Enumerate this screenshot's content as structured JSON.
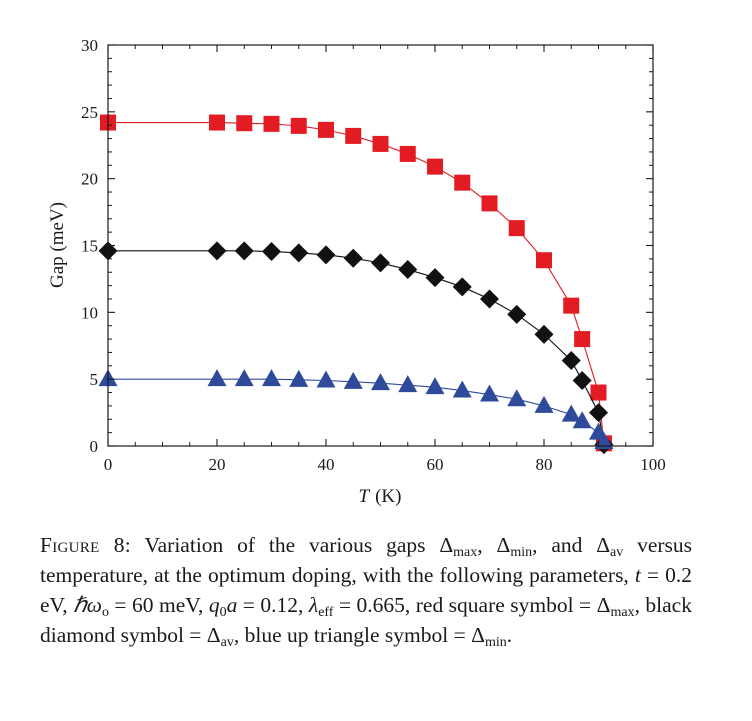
{
  "chart_data": {
    "type": "scatter",
    "xlabel_var": "T",
    "xlabel_unit": "(K)",
    "ylabel": "Gap (meV)",
    "xlim": [
      0,
      100
    ],
    "ylim": [
      0,
      30
    ],
    "xticks": [
      "0",
      "20",
      "40",
      "60",
      "80",
      "100"
    ],
    "yticks": [
      "0",
      "5",
      "10",
      "15",
      "20",
      "25",
      "30"
    ],
    "grid": false,
    "series": [
      {
        "marker": "square",
        "color": "#e31b23",
        "x": [
          0,
          20,
          25,
          30,
          35,
          40,
          45,
          50,
          55,
          60,
          65,
          70,
          75,
          80,
          85,
          87,
          90,
          91
        ],
        "y": [
          24.2,
          24.2,
          24.15,
          24.1,
          23.95,
          23.65,
          23.2,
          22.6,
          21.85,
          20.9,
          19.7,
          18.15,
          16.3,
          13.9,
          10.5,
          8.0,
          4.0,
          0.2
        ]
      },
      {
        "marker": "diamond",
        "color": "#111111",
        "x": [
          0,
          20,
          25,
          30,
          35,
          40,
          45,
          50,
          55,
          60,
          65,
          70,
          75,
          80,
          85,
          87,
          90,
          91
        ],
        "y": [
          14.6,
          14.6,
          14.6,
          14.55,
          14.45,
          14.3,
          14.05,
          13.7,
          13.2,
          12.6,
          11.9,
          11.0,
          9.85,
          8.35,
          6.4,
          4.9,
          2.5,
          0.1
        ]
      },
      {
        "marker": "triangle-up",
        "color": "#2e4a9a",
        "x": [
          0,
          20,
          25,
          30,
          35,
          40,
          45,
          50,
          55,
          60,
          65,
          70,
          75,
          80,
          85,
          87,
          90,
          91
        ],
        "y": [
          5.0,
          5.0,
          5.0,
          5.0,
          4.95,
          4.9,
          4.8,
          4.7,
          4.55,
          4.4,
          4.15,
          3.85,
          3.5,
          3.0,
          2.35,
          1.85,
          1.0,
          0.3
        ]
      }
    ]
  },
  "caption": {
    "figure_label": "Figure 8:",
    "parts": [
      " Variation of the various gaps Δ",
      "max",
      ", Δ",
      "min",
      ", and Δ",
      "av",
      " versus temperature, at the optimum doping, with the following parameters, ",
      "t",
      " = 0.2 eV, ",
      "ℏω",
      "o",
      " = 60 meV, ",
      "q",
      "0",
      "a",
      " = 0.12, ",
      "λ",
      "eff",
      " = 0.665, red square symbol = Δ",
      "max",
      ", black diamond symbol = Δ",
      "av",
      ", blue up triangle symbol = Δ",
      "min",
      "."
    ]
  }
}
